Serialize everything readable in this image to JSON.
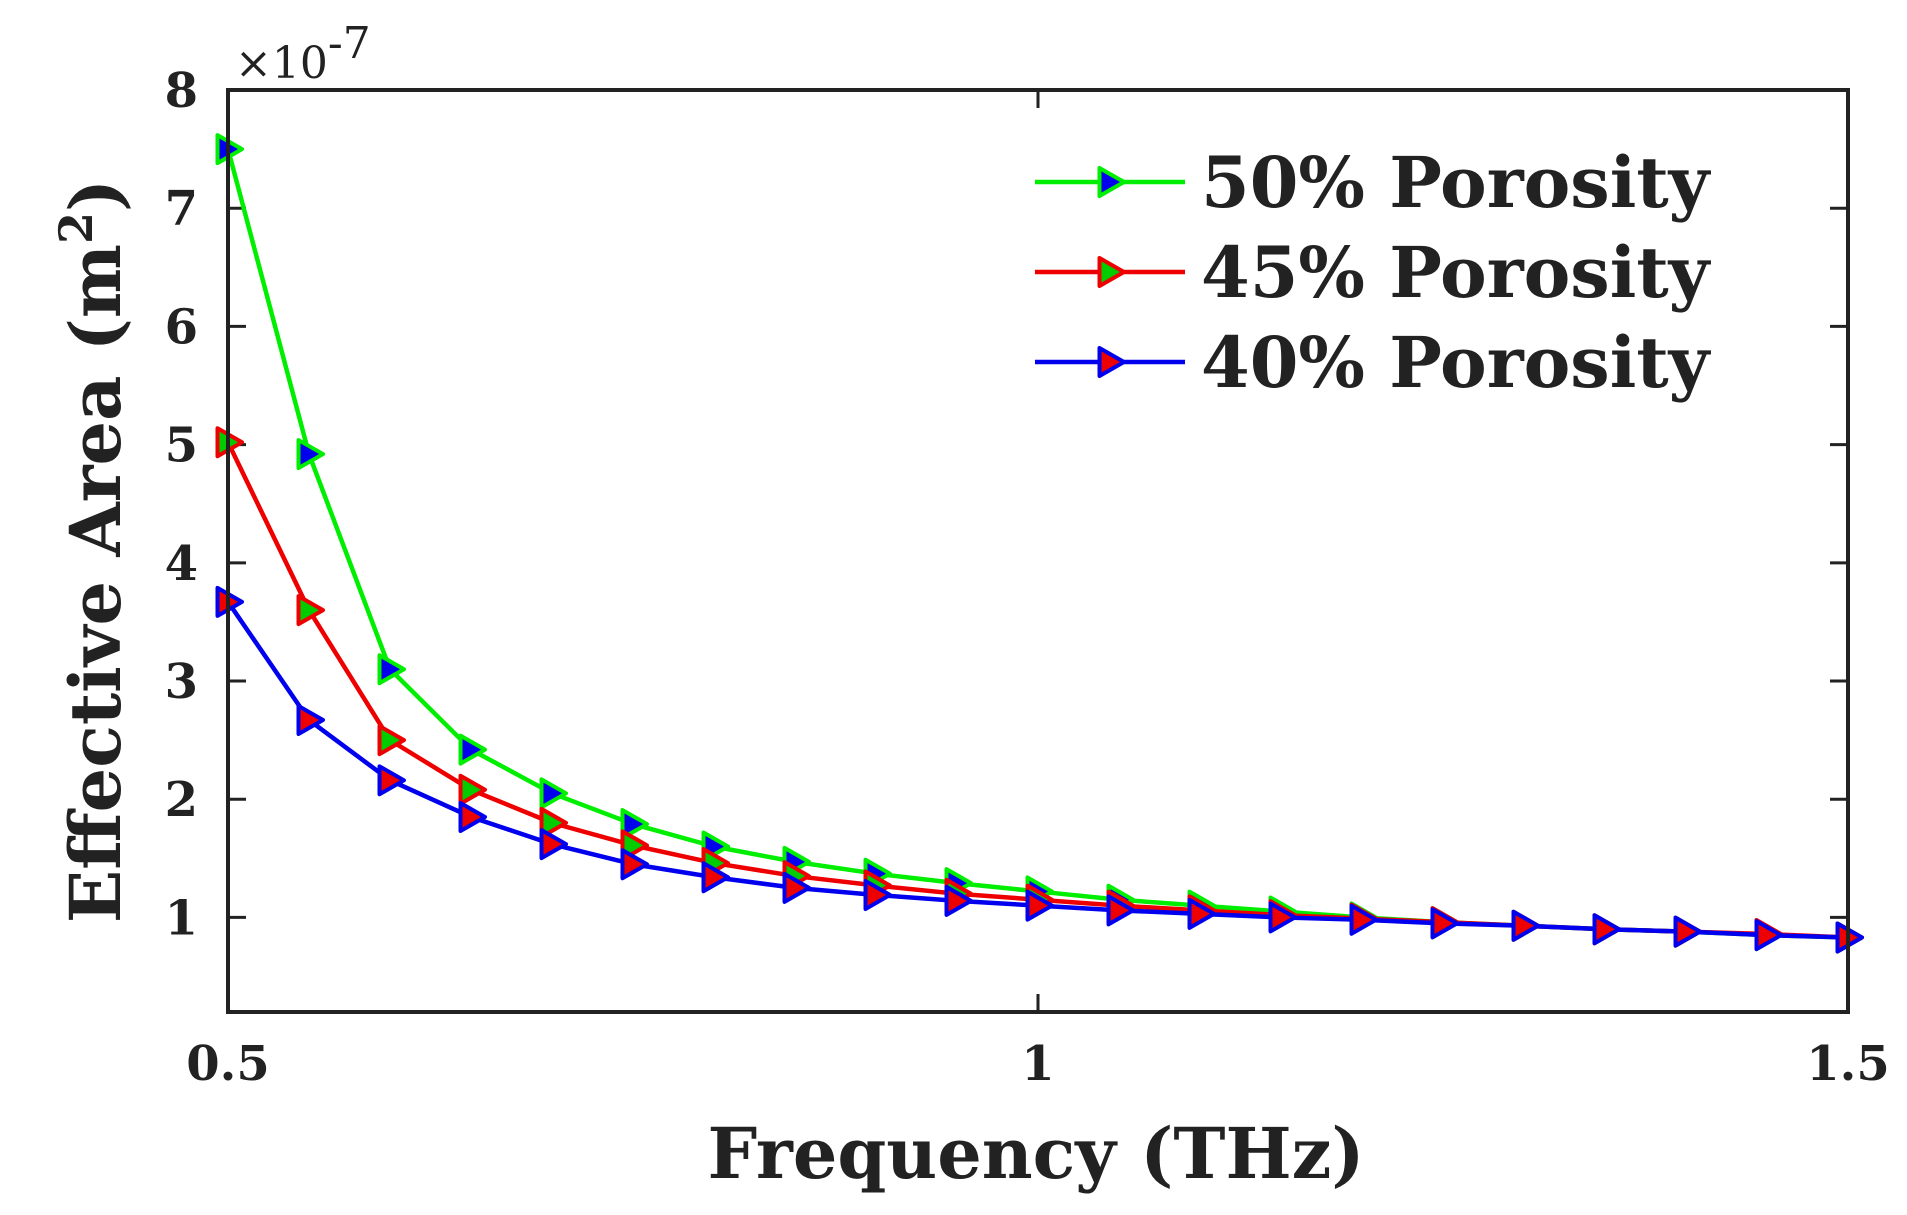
{
  "chart_data": {
    "type": "line",
    "title": "",
    "xlabel": "Frequency (THz)",
    "ylabel_main": "Effective Area (m",
    "ylabel_sup": "2",
    "ylabel_close": ")",
    "y_multiplier_base": "×10",
    "y_multiplier_exp": "-7",
    "xlim": [
      0.5,
      1.5
    ],
    "ylim": [
      0.2,
      8
    ],
    "x_ticks": [
      {
        "value": 0.5,
        "label": "0.5"
      },
      {
        "value": 1.0,
        "label": "1"
      },
      {
        "value": 1.5,
        "label": "1.5"
      }
    ],
    "y_ticks": [
      {
        "value": 1,
        "label": "1"
      },
      {
        "value": 2,
        "label": "2"
      },
      {
        "value": 3,
        "label": "3"
      },
      {
        "value": 4,
        "label": "4"
      },
      {
        "value": 5,
        "label": "5"
      },
      {
        "value": 6,
        "label": "6"
      },
      {
        "value": 7,
        "label": "7"
      },
      {
        "value": 8,
        "label": "8"
      }
    ],
    "legend_position": "top-right",
    "x": [
      0.5,
      0.55,
      0.6,
      0.65,
      0.7,
      0.75,
      0.8,
      0.85,
      0.9,
      0.95,
      1.0,
      1.05,
      1.1,
      1.15,
      1.2,
      1.25,
      1.3,
      1.35,
      1.4,
      1.45,
      1.5
    ],
    "series": [
      {
        "name": "50% Porosity",
        "line_color": "#00ee00",
        "marker_fill": "#0000ee",
        "values": [
          7.5,
          4.92,
          3.1,
          2.42,
          2.05,
          1.79,
          1.6,
          1.47,
          1.37,
          1.29,
          1.22,
          1.15,
          1.1,
          1.05,
          1.0,
          0.96,
          0.93,
          0.9,
          0.88,
          0.85,
          0.83
        ]
      },
      {
        "name": "45% Porosity",
        "line_color": "#ee0000",
        "marker_fill": "#00cc00",
        "values": [
          5.02,
          3.6,
          2.5,
          2.08,
          1.8,
          1.61,
          1.46,
          1.35,
          1.27,
          1.2,
          1.15,
          1.1,
          1.06,
          1.02,
          0.99,
          0.96,
          0.93,
          0.9,
          0.88,
          0.86,
          0.83
        ]
      },
      {
        "name": "40% Porosity",
        "line_color": "#0000ee",
        "marker_fill": "#ee0000",
        "values": [
          3.67,
          2.67,
          2.16,
          1.85,
          1.62,
          1.45,
          1.34,
          1.25,
          1.19,
          1.14,
          1.1,
          1.06,
          1.03,
          1.0,
          0.98,
          0.95,
          0.93,
          0.9,
          0.88,
          0.85,
          0.83
        ]
      }
    ]
  }
}
